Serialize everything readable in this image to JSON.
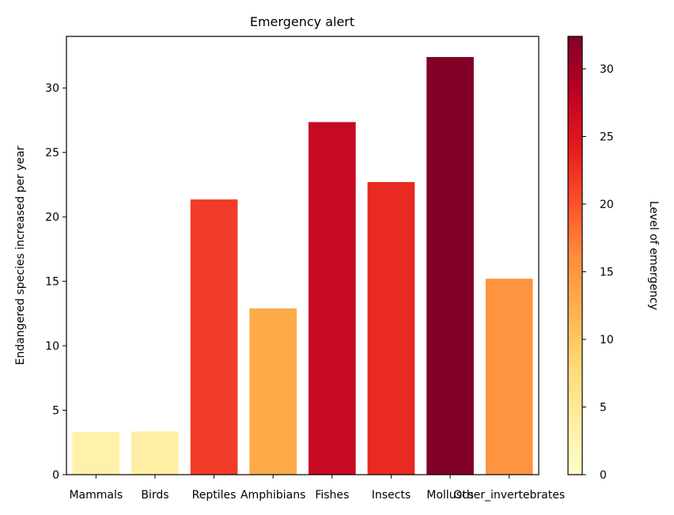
{
  "chart_data": {
    "type": "bar",
    "title": "Emergency alert",
    "xlabel": "",
    "ylabel": "Endangered species increased per year",
    "categories": [
      "Mammals",
      "Birds",
      "Reptiles",
      "Amphibians",
      "Fishes",
      "Insects",
      "Molluscs",
      "Other_invertebrates"
    ],
    "values": [
      3.3,
      3.35,
      21.35,
      12.9,
      27.35,
      22.7,
      32.4,
      15.2
    ],
    "bar_colors": [
      "#fff1a7",
      "#ffefa5",
      "#f23b28",
      "#feaa49",
      "#c70a22",
      "#e82a22",
      "#800026",
      "#fe9340"
    ],
    "ylim": [
      0,
      34
    ],
    "yticks": [
      0,
      5,
      10,
      15,
      20,
      25,
      30
    ],
    "grid": false,
    "colorbar": {
      "label": "Level of emergency",
      "range": [
        0,
        32.4
      ],
      "ticks": [
        0,
        5,
        10,
        15,
        20,
        25,
        30
      ],
      "colormap": "YlOrRd",
      "stops": [
        "#ffffcc",
        "#ffeda0",
        "#fed976",
        "#feb24c",
        "#fd8d3c",
        "#fc4e2a",
        "#e31a1c",
        "#bd0026",
        "#800026"
      ]
    }
  }
}
